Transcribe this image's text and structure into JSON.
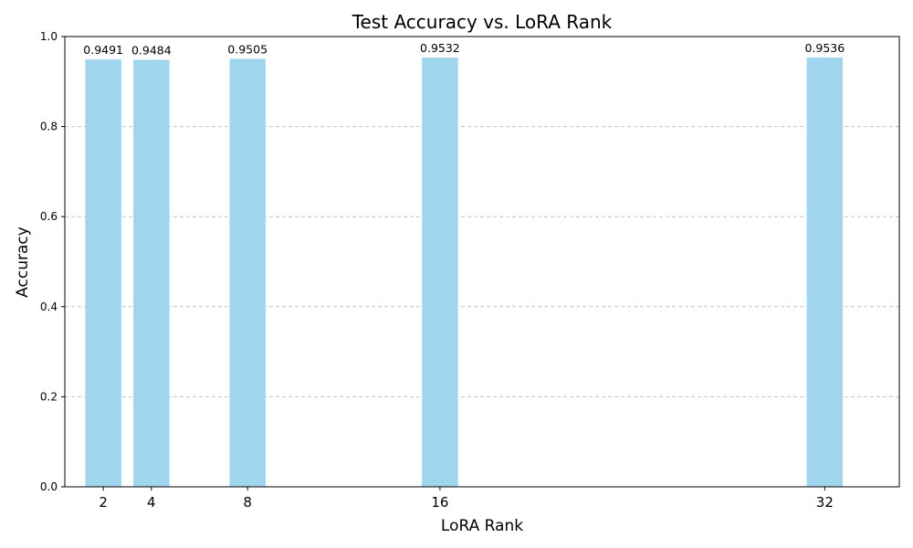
{
  "chart_data": {
    "type": "bar",
    "title": "Test Accuracy vs. LoRA Rank",
    "xlabel": "LoRA Rank",
    "ylabel": "Accuracy",
    "x": [
      2,
      4,
      8,
      16,
      32
    ],
    "x_tick_labels": [
      "2",
      "4",
      "8",
      "16",
      "32"
    ],
    "values": [
      0.9491,
      0.9484,
      0.9505,
      0.9532,
      0.9536
    ],
    "value_labels": [
      "0.9491",
      "0.9484",
      "0.9505",
      "0.9532",
      "0.9536"
    ],
    "y_ticks": [
      0.0,
      0.2,
      0.4,
      0.6,
      0.8,
      1.0
    ],
    "y_tick_labels": [
      "0.0",
      "0.2",
      "0.4",
      "0.6",
      "0.8",
      "1.0"
    ],
    "xlim": [
      0.4,
      35.1
    ],
    "ylim": [
      0,
      1
    ],
    "bar_width": 1.5,
    "bar_color": "#a0d6ed",
    "grid": "y-dashed"
  }
}
